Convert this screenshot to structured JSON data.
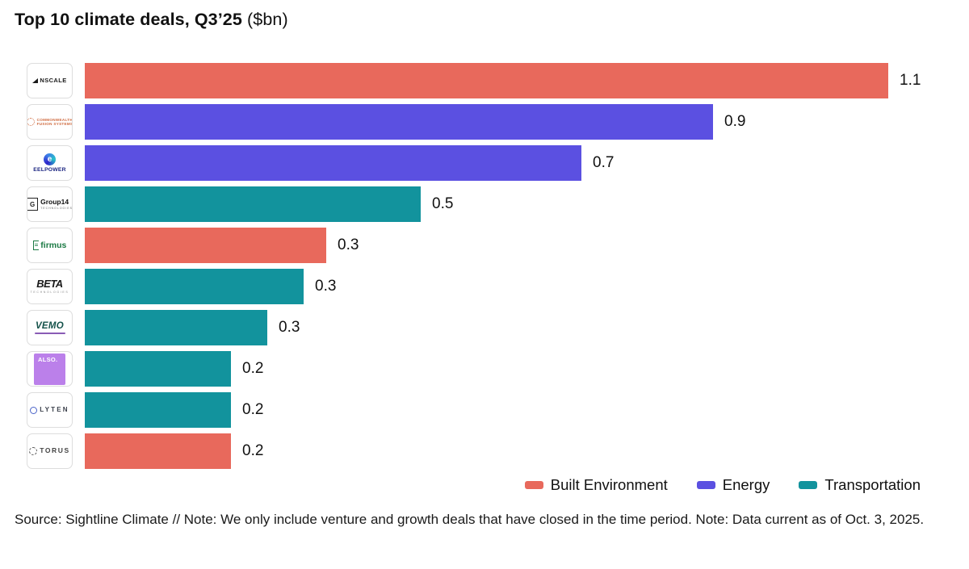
{
  "title": {
    "main": "Top 10 climate deals, Q3’25",
    "suffix": " ($bn)"
  },
  "colors": {
    "Built Environment": "#E8695C",
    "Energy": "#5B50E1",
    "Transportation": "#12939D"
  },
  "legend": [
    {
      "label": "Built Environment",
      "color": "#E8695C"
    },
    {
      "label": "Energy",
      "color": "#5B50E1"
    },
    {
      "label": "Transportation",
      "color": "#12939D"
    }
  ],
  "footer": "Source: Sightline Climate  //  Note: We only include venture and growth deals that have closed in the time period. Note: Data current as of Oct. 3, 2025.",
  "chart_data": {
    "type": "bar",
    "orientation": "horizontal",
    "title": "Top 10 climate deals, Q3’25 ($bn)",
    "categories": [
      "Nscale",
      "Commonwealth Fusion Systems",
      "Eelpower",
      "Group14 Technologies",
      "Firmus",
      "BETA Technologies",
      "VEMO",
      "ALSO",
      "Lyten",
      "Torus"
    ],
    "values": [
      1.1,
      0.9,
      0.7,
      0.5,
      0.3,
      0.3,
      0.3,
      0.2,
      0.2,
      0.2
    ],
    "value_labels": [
      "1.1",
      "0.9",
      "0.7",
      "0.5",
      "0.3",
      "0.3",
      "0.3",
      "0.2",
      "0.2",
      "0.2"
    ],
    "segments": [
      "Built Environment",
      "Energy",
      "Energy",
      "Transportation",
      "Built Environment",
      "Transportation",
      "Transportation",
      "Transportation",
      "Transportation",
      "Built Environment"
    ],
    "bar_length_estimates_bn": [
      1.1,
      0.86,
      0.68,
      0.46,
      0.33,
      0.3,
      0.25,
      0.2,
      0.2,
      0.2
    ],
    "xlim": [
      0,
      1.2
    ],
    "grid": false,
    "legend_position": "bottom-right",
    "value_labels_shown": true
  },
  "rows": [
    {
      "slug": "nscale",
      "category": "Built Environment",
      "value_label": "1.1",
      "est_bn": 1.1,
      "logo": {
        "icon_name": "nscale-triangle-mark",
        "icon": null,
        "line1": "NSCALE",
        "line2": null
      }
    },
    {
      "slug": "cfs",
      "category": "Energy",
      "value_label": "0.9",
      "est_bn": 0.86,
      "logo": {
        "icon_name": "commonwealth-fusion-sunburst-mark",
        "icon": null,
        "line1": "COMMONWEALTH",
        "line2": "FUSION SYSTEMS"
      }
    },
    {
      "slug": "eelpower",
      "category": "Energy",
      "value_label": "0.7",
      "est_bn": 0.68,
      "logo": {
        "icon_name": "eelpower-circle-e-mark",
        "icon": "e",
        "line1": "EELPOWER",
        "line2": null
      }
    },
    {
      "slug": "group14",
      "category": "Transportation",
      "value_label": "0.5",
      "est_bn": 0.46,
      "logo": {
        "icon_name": "group14-element-square-mark",
        "icon": "G",
        "line1": "Group14",
        "line2": "TECHNOLOGIES"
      }
    },
    {
      "slug": "firmus",
      "category": "Built Environment",
      "value_label": "0.3",
      "est_bn": 0.33,
      "logo": {
        "icon_name": "firmus-bracket-mark",
        "icon": "≡",
        "line1": "firmus",
        "line2": null
      }
    },
    {
      "slug": "beta",
      "category": "Transportation",
      "value_label": "0.3",
      "est_bn": 0.3,
      "logo": {
        "icon_name": "beta-wordmark",
        "icon": null,
        "line1": "BETA",
        "line2": "TECHNOLOGIES"
      }
    },
    {
      "slug": "vemo",
      "category": "Transportation",
      "value_label": "0.3",
      "est_bn": 0.25,
      "logo": {
        "icon_name": "vemo-wordmark-underline",
        "icon": null,
        "line1": "VEMO",
        "line2": null
      }
    },
    {
      "slug": "also",
      "category": "Transportation",
      "value_label": "0.2",
      "est_bn": 0.2,
      "logo": {
        "icon_name": "also-purple-square-mark",
        "icon": null,
        "line1": "ALSO.",
        "line2": null
      }
    },
    {
      "slug": "lyten",
      "category": "Transportation",
      "value_label": "0.2",
      "est_bn": 0.2,
      "logo": {
        "icon_name": "lyten-ring-mark",
        "icon": null,
        "line1": "LYTEN",
        "line2": null
      }
    },
    {
      "slug": "torus",
      "category": "Built Environment",
      "value_label": "0.2",
      "est_bn": 0.2,
      "logo": {
        "icon_name": "torus-gear-ring-mark",
        "icon": null,
        "line1": "TORUS",
        "line2": null
      }
    }
  ]
}
